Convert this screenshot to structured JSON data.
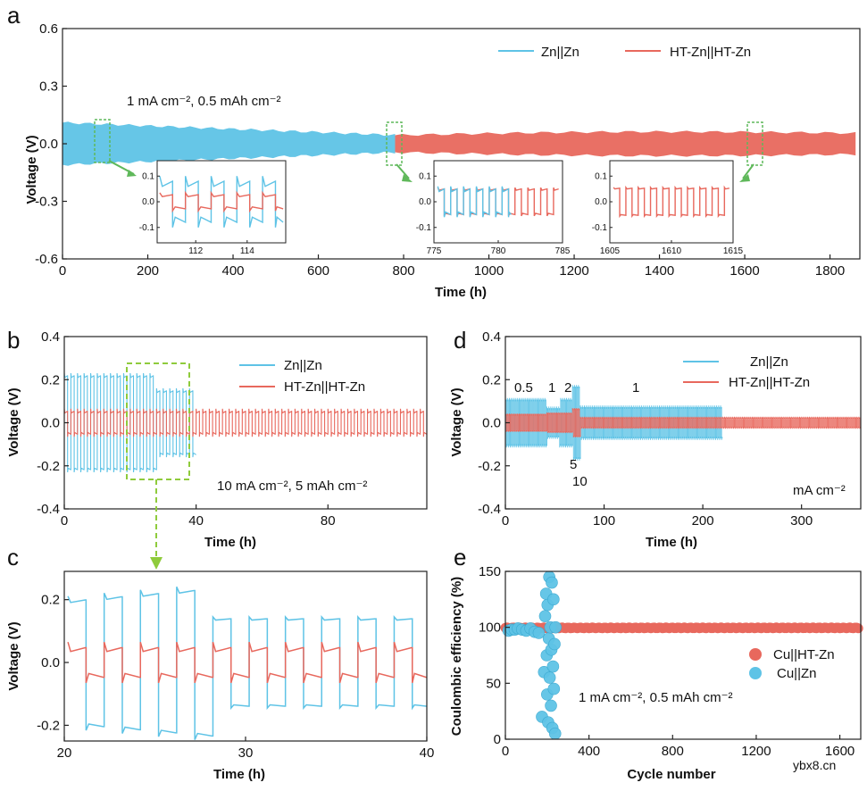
{
  "colors": {
    "blue": "#5ec3e6",
    "red": "#e8685d",
    "green": "#5fb85a",
    "lime": "#8fcb3c"
  },
  "watermark": "ybx8.cn",
  "chart_data": [
    {
      "id": "a",
      "label": "a",
      "type": "line",
      "xlabel": "Time (h)",
      "ylabel": "Voltage (V)",
      "xlim": [
        0,
        1870
      ],
      "ylim": [
        -0.6,
        0.6
      ],
      "xticks": [
        "0",
        "200",
        "400",
        "600",
        "800",
        "1000",
        "1200",
        "1400",
        "1600",
        "1800"
      ],
      "xtick_values": [
        0,
        200,
        400,
        600,
        800,
        1000,
        1200,
        1400,
        1600,
        1800
      ],
      "yticks": [
        "-0.6",
        "-0.3",
        "0.0",
        "0.3",
        "0.6"
      ],
      "ytick_values": [
        -0.6,
        -0.3,
        0.0,
        0.3,
        0.6
      ],
      "annotation": "1 mA cm⁻², 0.5 mAh cm⁻²",
      "legend": "top-right",
      "series": [
        {
          "name": "Zn||Zn",
          "color": "#5ec3e6",
          "x_range": [
            0,
            780
          ],
          "amp_start": 0.11,
          "amp_end": 0.045
        },
        {
          "name": "HT-Zn||HT-Zn",
          "color": "#e8685d",
          "x_range": [
            780,
            1860
          ],
          "amp_start": 0.045,
          "amp_end": 0.055
        }
      ],
      "insets": [
        {
          "xticks": [
            "112",
            "114"
          ],
          "xtick_values": [
            112,
            114
          ],
          "xlim": [
            110.5,
            115.5
          ],
          "yticks": [
            "0.1",
            "0.0",
            "-0.1"
          ],
          "ylim": [
            -0.16,
            0.16
          ]
        },
        {
          "xticks": [
            "775",
            "780",
            "785"
          ],
          "xtick_values": [
            775,
            780,
            785
          ],
          "xlim": [
            775,
            785
          ],
          "yticks": [
            "0.1",
            "0.0",
            "-0.1"
          ],
          "ylim": [
            -0.16,
            0.16
          ]
        },
        {
          "xticks": [
            "1605",
            "1610",
            "1615"
          ],
          "xtick_values": [
            1605,
            1610,
            1615
          ],
          "xlim": [
            1605,
            1615
          ],
          "yticks": [
            "0.1",
            "0.0",
            "-0.1"
          ],
          "ylim": [
            -0.16,
            0.16
          ]
        }
      ]
    },
    {
      "id": "b",
      "label": "b",
      "type": "line",
      "xlabel": "Time (h)",
      "ylabel": "Voltage (V)",
      "xlim": [
        0,
        110
      ],
      "ylim": [
        -0.4,
        0.4
      ],
      "xticks": [
        "0",
        "40",
        "80"
      ],
      "xtick_values": [
        0,
        40,
        80
      ],
      "yticks": [
        "-0.4",
        "-0.2",
        "0.0",
        "0.2",
        "0.4"
      ],
      "ytick_values": [
        -0.4,
        -0.2,
        0.0,
        0.2,
        0.4
      ],
      "annotation": "10 mA cm⁻², 5 mAh cm⁻²",
      "legend": "top-right",
      "series": [
        {
          "name": "Zn||Zn",
          "color": "#5ec3e6",
          "x_range": [
            0,
            40
          ],
          "amp_start": 0.22,
          "amp_end": 0.14
        },
        {
          "name": "HT-Zn||HT-Zn",
          "color": "#e8685d",
          "x_range": [
            0,
            110
          ],
          "amp_start": 0.06,
          "amp_end": 0.06
        }
      ]
    },
    {
      "id": "c",
      "label": "c",
      "type": "line",
      "xlabel": "Time (h)",
      "ylabel": "Voltage (V)",
      "xlim": [
        20,
        40
      ],
      "ylim": [
        -0.25,
        0.29
      ],
      "xticks": [
        "20",
        "30",
        "40"
      ],
      "xtick_values": [
        20,
        30,
        40
      ],
      "yticks": [
        "-0.2",
        "0.0",
        "0.2"
      ],
      "ytick_values": [
        -0.2,
        0.0,
        0.2
      ],
      "series": [
        {
          "name": "Zn||Zn",
          "color": "#5ec3e6",
          "cycle_h": 2,
          "high_amp_until": 28,
          "amp_high": 0.22,
          "amp_low": 0.15
        },
        {
          "name": "HT-Zn||HT-Zn",
          "color": "#e8685d",
          "cycle_h": 2,
          "amp": 0.055
        }
      ]
    },
    {
      "id": "d",
      "label": "d",
      "type": "line",
      "xlabel": "Time (h)",
      "ylabel": "Voltage (V)",
      "xlim": [
        0,
        360
      ],
      "ylim": [
        -0.4,
        0.4
      ],
      "xticks": [
        "0",
        "100",
        "200",
        "300"
      ],
      "xtick_values": [
        0,
        100,
        200,
        300
      ],
      "yticks": [
        "-0.4",
        "-0.2",
        "0.0",
        "0.2",
        "0.4"
      ],
      "ytick_values": [
        -0.4,
        -0.2,
        0.0,
        0.2,
        0.4
      ],
      "rate_labels": [
        "0.5",
        "1",
        "2",
        "1",
        "5",
        "10"
      ],
      "unit_label": "mA cm⁻²",
      "legend": "top-right",
      "series": [
        {
          "name": "Zn||Zn",
          "color": "#5ec3e6",
          "x_range": [
            0,
            220
          ]
        },
        {
          "name": "HT-Zn||HT-Zn",
          "color": "#e8685d",
          "x_range": [
            0,
            360
          ]
        }
      ]
    },
    {
      "id": "e",
      "label": "e",
      "type": "scatter",
      "xlabel": "Cycle number",
      "ylabel": "Coulombic efficiency (%)",
      "xlim": [
        0,
        1700
      ],
      "ylim": [
        0,
        150
      ],
      "xticks": [
        "0",
        "400",
        "800",
        "1200",
        "1600"
      ],
      "xtick_values": [
        0,
        400,
        800,
        1200,
        1600
      ],
      "yticks": [
        "0",
        "50",
        "100",
        "150"
      ],
      "ytick_values": [
        0,
        50,
        100,
        150
      ],
      "annotation": "1 mA cm⁻², 0.5 mAh cm⁻²",
      "legend": "center-right",
      "series": [
        {
          "name": "Cu||HT-Zn",
          "color": "#e8685d",
          "x_range": [
            0,
            1690
          ],
          "value": 99.5
        },
        {
          "name": "Cu||Zn",
          "color": "#5ec3e6",
          "x": [
            15,
            30,
            45,
            60,
            80,
            100,
            120,
            140,
            160,
            175,
            185,
            190,
            195,
            198,
            200,
            202,
            205,
            208,
            210,
            212,
            215,
            218,
            220,
            222,
            225,
            228,
            230,
            232,
            235,
            238,
            240
          ],
          "y": [
            97,
            98,
            98,
            99,
            98,
            97,
            99,
            96,
            95,
            20,
            60,
            110,
            130,
            75,
            40,
            120,
            15,
            90,
            145,
            55,
            100,
            30,
            80,
            140,
            10,
            65,
            125,
            45,
            85,
            5,
            100
          ]
        }
      ]
    }
  ]
}
